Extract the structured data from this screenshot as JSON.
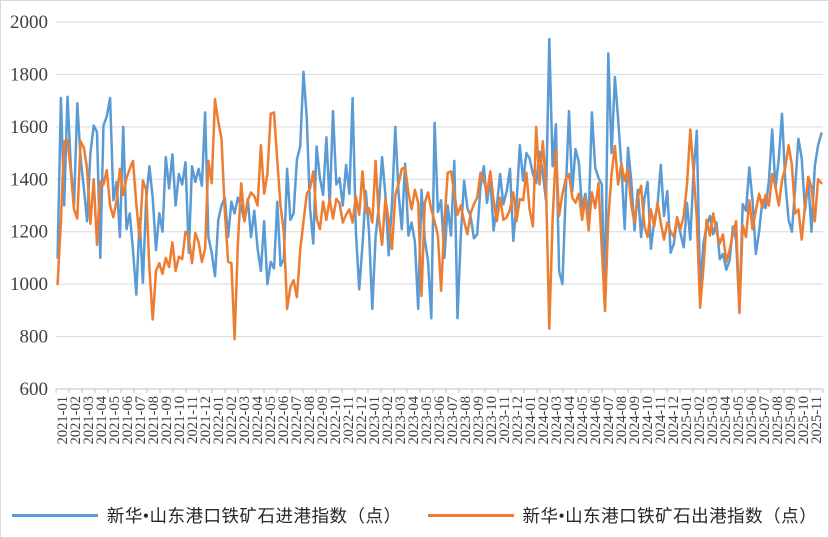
{
  "chart_data": {
    "type": "line",
    "title": "",
    "grid": "horizontal",
    "legend_position": "bottom",
    "y_axis": {
      "min": 600,
      "max": 2000,
      "step": 200,
      "tick_labels": [
        "600",
        "800",
        "1000",
        "1200",
        "1400",
        "1600",
        "1800",
        "2000"
      ]
    },
    "x_axis": {
      "labels": [
        "2021-01",
        "2021-02",
        "2021-03",
        "2021-04",
        "2021-05",
        "2021-06",
        "2021-07",
        "2021-08",
        "2021-09",
        "2021-10",
        "2021-11",
        "2021-12",
        "2022-01",
        "2022-02",
        "2022-03",
        "2022-04",
        "2022-05",
        "2022-06",
        "2022-07",
        "2022-08",
        "2022-09",
        "2022-10",
        "2022-11",
        "2022-12",
        "2023-01",
        "2023-02",
        "2023-03",
        "2023-04",
        "2023-05",
        "2023-06",
        "2023-07",
        "2023-08",
        "2023-09",
        "2023-10",
        "2023-11",
        "2023-12",
        "2024-01",
        "2024-02",
        "2024-03",
        "2024-04",
        "2024-05",
        "2024-06",
        "2024-07",
        "2024-08",
        "2024-09",
        "2024-10",
        "2024-11",
        "2024-12",
        "2025-01",
        "2025-02",
        "2025-03",
        "2025-04",
        "2025-05",
        "2025-06",
        "2025-07",
        "2025-08",
        "2025-09",
        "2025-10",
        "2025-11"
      ],
      "points_per_month": 4,
      "frequency": "weekly"
    },
    "series": [
      {
        "name": "新华•山东港口铁矿石进港指数（点）",
        "color": "#5B9BD5",
        "values": [
          1100,
          1710,
          1300,
          1715,
          1450,
          1300,
          1690,
          1480,
          1365,
          1240,
          1500,
          1605,
          1580,
          1100,
          1605,
          1640,
          1710,
          1320,
          1390,
          1180,
          1600,
          1210,
          1270,
          1130,
          960,
          1250,
          1005,
          1320,
          1450,
          1330,
          1130,
          1270,
          1200,
          1485,
          1365,
          1495,
          1300,
          1420,
          1380,
          1465,
          1120,
          1450,
          1390,
          1440,
          1375,
          1655,
          1180,
          1120,
          1030,
          1245,
          1300,
          1330,
          1180,
          1315,
          1270,
          1330,
          1295,
          1240,
          1325,
          1180,
          1280,
          1135,
          1050,
          1240,
          1000,
          1085,
          1060,
          1315,
          1070,
          1095,
          1440,
          1245,
          1270,
          1475,
          1525,
          1810,
          1630,
          1290,
          1155,
          1525,
          1405,
          1340,
          1560,
          1300,
          1660,
          1380,
          1405,
          1300,
          1455,
          1345,
          1710,
          1200,
          980,
          1150,
          1355,
          1200,
          905,
          1180,
          1300,
          1485,
          1340,
          1110,
          1305,
          1600,
          1350,
          1210,
          1460,
          1185,
          1235,
          1160,
          905,
          1360,
          1170,
          1090,
          870,
          1615,
          1275,
          1320,
          1100,
          1300,
          1185,
          1470,
          870,
          1185,
          1395,
          1290,
          1260,
          1175,
          1190,
          1370,
          1450,
          1310,
          1405,
          1205,
          1300,
          1420,
          1305,
          1355,
          1440,
          1165,
          1305,
          1530,
          1395,
          1500,
          1480,
          1420,
          1385,
          1505,
          1425,
          1320,
          1935,
          1450,
          1610,
          1050,
          1000,
          1345,
          1660,
          1355,
          1515,
          1465,
          1290,
          1345,
          1250,
          1655,
          1445,
          1405,
          1380,
          950,
          1880,
          1500,
          1790,
          1630,
          1450,
          1210,
          1520,
          1395,
          1205,
          1360,
          1180,
          1325,
          1390,
          1135,
          1240,
          1300,
          1455,
          1260,
          1355,
          1120,
          1155,
          1255,
          1195,
          1140,
          1310,
          1170,
          1420,
          1585,
          985,
          1155,
          1220,
          1260,
          1190,
          1235,
          1095,
          1115,
          1055,
          1090,
          1220,
          1170,
          900,
          1305,
          1280,
          1445,
          1320,
          1115,
          1200,
          1320,
          1290,
          1395,
          1590,
          1365,
          1480,
          1650,
          1390,
          1245,
          1200,
          1365,
          1555,
          1480,
          1280,
          1395,
          1200,
          1450,
          1530,
          1575
        ]
      },
      {
        "name": "新华•山东港口铁矿石出港指数（点）",
        "color": "#ED7D31",
        "values": [
          1000,
          1240,
          1545,
          1550,
          1430,
          1285,
          1250,
          1545,
          1520,
          1440,
          1230,
          1400,
          1150,
          1390,
          1380,
          1435,
          1300,
          1255,
          1320,
          1440,
          1340,
          1405,
          1440,
          1470,
          1305,
          1175,
          1395,
          1360,
          1060,
          865,
          1050,
          1080,
          1040,
          1100,
          1065,
          1160,
          1050,
          1105,
          1095,
          1200,
          1180,
          1080,
          1195,
          1160,
          1085,
          1135,
          1470,
          1385,
          1705,
          1620,
          1555,
          1280,
          1085,
          1080,
          790,
          1155,
          1385,
          1240,
          1320,
          1350,
          1335,
          1300,
          1530,
          1345,
          1420,
          1650,
          1655,
          1470,
          1300,
          1200,
          905,
          990,
          1015,
          950,
          1130,
          1240,
          1345,
          1365,
          1430,
          1250,
          1210,
          1315,
          1245,
          1325,
          1250,
          1325,
          1310,
          1235,
          1265,
          1285,
          1235,
          1335,
          1265,
          1430,
          1275,
          1290,
          1235,
          1470,
          1250,
          1150,
          1325,
          1245,
          1135,
          1340,
          1380,
          1440,
          1445,
          1350,
          1285,
          1360,
          1310,
          955,
          1310,
          1350,
          1285,
          1240,
          1185,
          975,
          1235,
          1425,
          1430,
          1350,
          1265,
          1300,
          1240,
          1190,
          1270,
          1305,
          1330,
          1425,
          1395,
          1345,
          1430,
          1320,
          1240,
          1330,
          1245,
          1255,
          1285,
          1350,
          1240,
          1325,
          1320,
          1425,
          1285,
          1220,
          1600,
          1380,
          1545,
          1380,
          830,
          1245,
          1510,
          1260,
          1345,
          1400,
          1420,
          1330,
          1310,
          1345,
          1245,
          1330,
          1205,
          1350,
          1290,
          1385,
          1135,
          897,
          1250,
          1420,
          1527,
          1380,
          1460,
          1395,
          1440,
          1300,
          1235,
          1330,
          1375,
          1220,
          1180,
          1285,
          1220,
          1310,
          1235,
          1170,
          1235,
          1200,
          1180,
          1255,
          1210,
          1260,
          1380,
          1590,
          1430,
          1250,
          910,
          1060,
          1245,
          1185,
          1270,
          1200,
          1155,
          1190,
          1085,
          1130,
          1195,
          1240,
          890,
          1225,
          1180,
          1320,
          1210,
          1280,
          1345,
          1290,
          1340,
          1300,
          1420,
          1370,
          1300,
          1395,
          1445,
          1530,
          1455,
          1270,
          1285,
          1170,
          1300,
          1410,
          1370,
          1240,
          1400,
          1385
        ]
      }
    ]
  },
  "colors": {
    "background": "#FFFFFF",
    "gridline": "#D9D9D9",
    "axis": "#BFBFBF",
    "label_text": "#404040"
  }
}
